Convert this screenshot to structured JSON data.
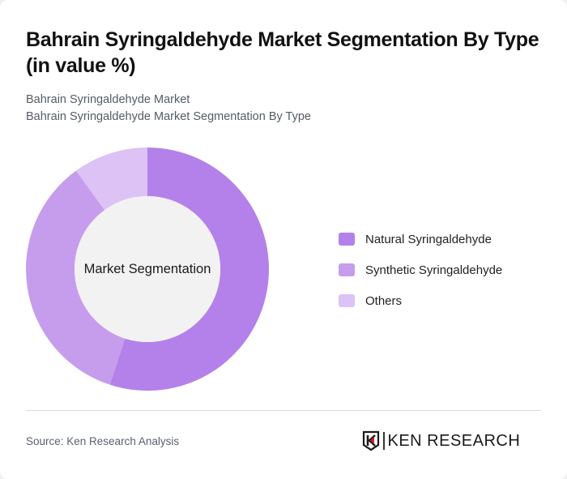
{
  "header": {
    "title": "Bahrain Syringaldehyde Market Segmentation By Type (in value %)",
    "subtitle_line1": "Bahrain Syringaldehyde Market",
    "subtitle_line2": "Bahrain Syringaldehyde Market Segmentation By Type"
  },
  "chart": {
    "center_label": "Market Segmentation"
  },
  "legend": {
    "items": [
      {
        "label": "Natural Syringaldehyde",
        "color": "#B481EA"
      },
      {
        "label": "Synthetic Syringaldehyde",
        "color": "#C69DED"
      },
      {
        "label": "Others",
        "color": "#DCC2F5"
      }
    ]
  },
  "footer": {
    "source": "Source: Ken Research Analysis",
    "logo_text": "KEN RESEARCH"
  },
  "chart_data": {
    "type": "pie",
    "subtype": "donut",
    "title": "Bahrain Syringaldehyde Market Segmentation By Type (in value %)",
    "subtitle": "Bahrain Syringaldehyde Market Segmentation By Type",
    "center_label": "Market Segmentation",
    "categories": [
      "Natural Syringaldehyde",
      "Synthetic Syringaldehyde",
      "Others"
    ],
    "values": [
      55,
      35,
      10
    ],
    "colors": [
      "#B481EA",
      "#C69DED",
      "#DCC2F5"
    ],
    "unit": "%",
    "legend_position": "right",
    "start_angle": "12 o'clock, clockwise"
  }
}
